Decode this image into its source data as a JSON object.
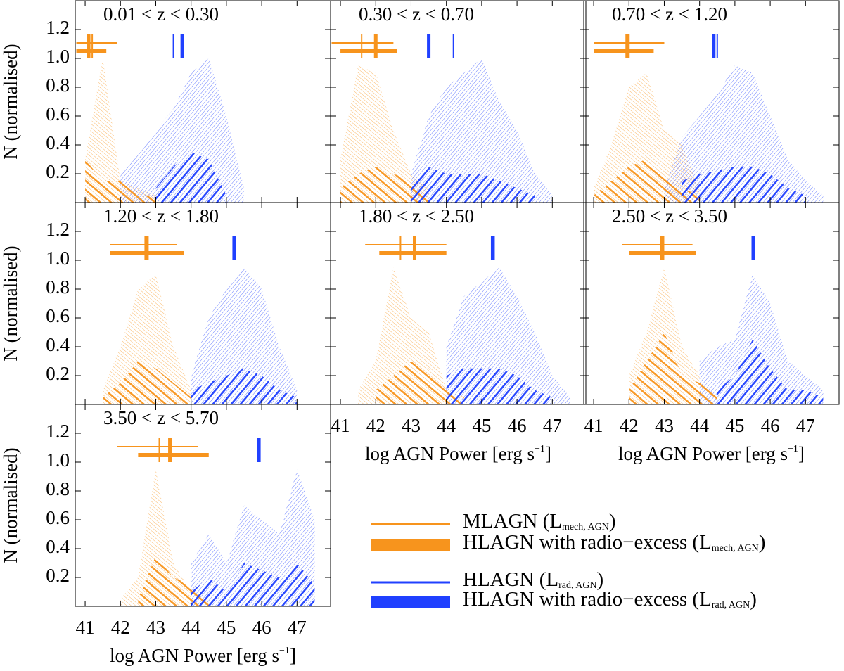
{
  "chart_data": [
    {
      "type": "area",
      "title": "0.01 < z < 0.30",
      "ylabel": "N (normalised)",
      "x": [
        41.0,
        41.5,
        42.0,
        42.5,
        43.0,
        43.5,
        44.0,
        44.5,
        45.0,
        45.5,
        46.0,
        46.5,
        47.0,
        47.5
      ],
      "xlim": [
        40.72,
        47.95
      ],
      "ylim": [
        0,
        1.4
      ],
      "xticks": [
        41,
        42,
        43,
        44,
        45,
        46,
        47
      ],
      "yticks": [
        0.2,
        0.4,
        0.6,
        0.8,
        {
          "value": 1.0,
          "label": "1.0"
        },
        1.2
      ],
      "series": [
        {
          "name": "MLAGN (L_{mech, AGN})",
          "color": "#f7941d",
          "style": "light",
          "values": [
            0.3,
            1.0,
            0.15,
            0.1,
            0.05,
            null,
            null,
            null,
            null,
            null,
            null,
            null,
            null,
            null
          ],
          "mean": 41.2,
          "range": [
            40.75,
            41.9
          ]
        },
        {
          "name": "HLAGN with radio−excess (L_{mech, AGN})",
          "color": "#f7941d",
          "style": "bold",
          "values": [
            0.3,
            0.15,
            0.15,
            0.05,
            0.05,
            null,
            null,
            null,
            null,
            null,
            null,
            null,
            null,
            null
          ],
          "mean": 41.1,
          "range": [
            40.75,
            41.6
          ]
        },
        {
          "name": "HLAGN (L_{rad, AGN})",
          "color": "#2040ff",
          "style": "light",
          "values": [
            null,
            null,
            0.2,
            0.35,
            0.5,
            0.65,
            0.9,
            1.0,
            0.6,
            0.1,
            null,
            null,
            null,
            null
          ],
          "mean": 43.5
        },
        {
          "name": "HLAGN with radio−excess (L_{rad, AGN})",
          "color": "#2040ff",
          "style": "bold",
          "values": [
            null,
            null,
            null,
            null,
            0.1,
            0.25,
            0.35,
            0.3,
            0.05,
            null,
            null,
            null,
            null,
            null
          ],
          "mean": 43.75
        }
      ]
    },
    {
      "type": "area",
      "title": "0.30 < z < 0.70",
      "x": [
        41.0,
        41.5,
        42.0,
        42.5,
        43.0,
        43.5,
        44.0,
        44.5,
        45.0,
        45.5,
        46.0,
        46.5,
        47.0,
        47.5
      ],
      "xlim": [
        40.72,
        47.95
      ],
      "ylim": [
        0,
        1.4
      ],
      "xticks": [
        41,
        42,
        43,
        44,
        45,
        46,
        47
      ],
      "yticks": [
        0.2,
        0.4,
        0.6,
        0.8,
        1.0,
        1.2
      ],
      "series": [
        {
          "name": "MLAGN (L_{mech, AGN})",
          "color": "#f7941d",
          "style": "light",
          "values": [
            0.3,
            0.95,
            0.9,
            0.5,
            0.2,
            0.1,
            null,
            null,
            null,
            null,
            null,
            null,
            null,
            null
          ],
          "mean": 41.6,
          "range": [
            40.75,
            42.5
          ]
        },
        {
          "name": "HLAGN with radio−excess (L_{mech, AGN})",
          "color": "#f7941d",
          "style": "bold",
          "values": [
            0.1,
            0.2,
            0.25,
            0.2,
            0.15,
            0.05,
            null,
            null,
            null,
            null,
            null,
            null,
            null,
            null
          ],
          "mean": 42.0,
          "range": [
            41.0,
            42.6
          ]
        },
        {
          "name": "HLAGN (L_{rad, AGN})",
          "color": "#2040ff",
          "style": "light",
          "values": [
            null,
            null,
            null,
            null,
            0.2,
            0.6,
            0.8,
            0.9,
            1.0,
            0.7,
            0.5,
            0.2,
            0.05,
            null
          ],
          "mean": 44.2
        },
        {
          "name": "HLAGN with radio−excess (L_{rad, AGN})",
          "color": "#2040ff",
          "style": "bold",
          "values": [
            null,
            null,
            null,
            null,
            0.1,
            0.25,
            0.2,
            0.2,
            0.2,
            0.15,
            0.1,
            0.05,
            null,
            null
          ],
          "mean": 43.5
        }
      ]
    },
    {
      "type": "area",
      "title": "0.70 < z < 1.20",
      "x": [
        41.0,
        41.5,
        42.0,
        42.5,
        43.0,
        43.5,
        44.0,
        44.5,
        45.0,
        45.5,
        46.0,
        46.5,
        47.0,
        47.5
      ],
      "xlim": [
        40.72,
        47.95
      ],
      "ylim": [
        0,
        1.4
      ],
      "xticks": [
        41,
        42,
        43,
        44,
        45,
        46,
        47
      ],
      "yticks": [
        0.2,
        0.4,
        0.6,
        0.8,
        1.0,
        1.2
      ],
      "series": [
        {
          "name": "MLAGN (L_{mech, AGN})",
          "color": "#f7941d",
          "style": "light",
          "values": [
            0.1,
            0.4,
            0.8,
            0.9,
            0.5,
            0.4,
            0.1,
            null,
            null,
            null,
            null,
            null,
            null,
            null
          ],
          "mean": 42.0,
          "range": [
            41.0,
            43.0
          ]
        },
        {
          "name": "HLAGN with radio−excess (L_{mech, AGN})",
          "color": "#f7941d",
          "style": "bold",
          "values": [
            0.05,
            0.15,
            0.25,
            0.3,
            0.2,
            0.1,
            0.05,
            null,
            null,
            null,
            null,
            null,
            null,
            null
          ],
          "mean": 41.95,
          "range": [
            41.0,
            42.7
          ]
        },
        {
          "name": "HLAGN (L_{rad, AGN})",
          "color": "#2040ff",
          "style": "light",
          "values": [
            null,
            null,
            null,
            null,
            0.1,
            0.45,
            0.6,
            0.75,
            0.95,
            0.9,
            0.6,
            0.3,
            0.15,
            0.05
          ],
          "mean": 44.5
        },
        {
          "name": "HLAGN with radio−excess (L_{rad, AGN})",
          "color": "#2040ff",
          "style": "bold",
          "values": [
            null,
            null,
            null,
            null,
            null,
            0.15,
            0.2,
            0.22,
            0.25,
            0.25,
            0.2,
            0.1,
            0.05,
            null
          ],
          "mean": 44.4
        }
      ]
    },
    {
      "type": "area",
      "title": "1.20 < z < 1.80",
      "ylabel": "N (normalised)",
      "x": [
        41.0,
        41.5,
        42.0,
        42.5,
        43.0,
        43.5,
        44.0,
        44.5,
        45.0,
        45.5,
        46.0,
        46.5,
        47.0,
        47.5
      ],
      "xlim": [
        40.72,
        47.95
      ],
      "ylim": [
        0,
        1.4
      ],
      "xticks": [
        41,
        42,
        43,
        44,
        45,
        46,
        47
      ],
      "yticks": [
        0.2,
        0.4,
        0.6,
        0.8,
        {
          "value": 1.0,
          "label": "1.0"
        },
        1.2
      ],
      "series": [
        {
          "name": "MLAGN (L_{mech, AGN})",
          "color": "#f7941d",
          "style": "light",
          "values": [
            null,
            0.1,
            0.4,
            0.8,
            0.9,
            0.4,
            0.1,
            null,
            null,
            null,
            null,
            null,
            null,
            null
          ],
          "mean": 42.7,
          "range": [
            41.7,
            43.6
          ]
        },
        {
          "name": "HLAGN with radio−excess (L_{mech, AGN})",
          "color": "#f7941d",
          "style": "bold",
          "values": [
            null,
            0.05,
            0.15,
            0.3,
            0.25,
            0.15,
            0.05,
            null,
            null,
            null,
            null,
            null,
            null,
            null
          ],
          "mean": 42.75,
          "range": [
            41.7,
            43.8
          ]
        },
        {
          "name": "HLAGN (L_{rad, AGN})",
          "color": "#2040ff",
          "style": "light",
          "values": [
            null,
            null,
            null,
            null,
            null,
            null,
            0.2,
            0.6,
            0.8,
            0.95,
            0.8,
            0.4,
            0.1,
            null
          ],
          "mean": 45.2
        },
        {
          "name": "HLAGN with radio−excess (L_{rad, AGN})",
          "color": "#2040ff",
          "style": "bold",
          "values": [
            null,
            null,
            null,
            null,
            null,
            null,
            0.1,
            0.15,
            0.2,
            0.25,
            0.2,
            0.1,
            0.05,
            null
          ],
          "mean": 45.22
        }
      ]
    },
    {
      "type": "area",
      "title": "1.80 < z < 2.50",
      "xlabel": "log AGN Power [erg s^{−1}]",
      "x": [
        41.0,
        41.5,
        42.0,
        42.5,
        43.0,
        43.5,
        44.0,
        44.5,
        45.0,
        45.5,
        46.0,
        46.5,
        47.0,
        47.5
      ],
      "xlim": [
        40.72,
        47.95
      ],
      "ylim": [
        0,
        1.4
      ],
      "xticks": [
        41,
        42,
        43,
        44,
        45,
        46,
        47
      ],
      "yticks": [
        0.2,
        0.4,
        0.6,
        0.8,
        1.0,
        1.2
      ],
      "series": [
        {
          "name": "MLAGN (L_{mech, AGN})",
          "color": "#f7941d",
          "style": "light",
          "values": [
            null,
            0.1,
            0.3,
            0.95,
            0.6,
            0.5,
            0.1,
            null,
            null,
            null,
            null,
            null,
            null,
            null
          ],
          "mean": 42.7,
          "range": [
            41.7,
            44.0
          ]
        },
        {
          "name": "HLAGN with radio−excess (L_{mech, AGN})",
          "color": "#f7941d",
          "style": "bold",
          "values": [
            null,
            null,
            0.1,
            0.2,
            0.3,
            0.25,
            0.1,
            0.05,
            null,
            null,
            null,
            null,
            null,
            null
          ],
          "mean": 43.1,
          "range": [
            42.1,
            44.0
          ]
        },
        {
          "name": "HLAGN (L_{rad, AGN})",
          "color": "#2040ff",
          "style": "light",
          "values": [
            null,
            null,
            null,
            null,
            null,
            null,
            0.4,
            0.75,
            0.85,
            0.95,
            0.75,
            0.5,
            0.2,
            0.05
          ],
          "mean": 45.28
        },
        {
          "name": "HLAGN with radio−excess (L_{rad, AGN})",
          "color": "#2040ff",
          "style": "bold",
          "values": [
            null,
            null,
            null,
            null,
            null,
            null,
            0.2,
            0.25,
            0.25,
            0.25,
            0.2,
            0.1,
            0.05,
            null
          ],
          "mean": 45.32
        }
      ]
    },
    {
      "type": "area",
      "title": "2.50 < z < 3.50",
      "xlabel": "log AGN Power [erg s^{−1}]",
      "x": [
        41.0,
        41.5,
        42.0,
        42.5,
        43.0,
        43.5,
        44.0,
        44.5,
        45.0,
        45.5,
        46.0,
        46.5,
        47.0,
        47.5
      ],
      "xlim": [
        40.72,
        47.95
      ],
      "ylim": [
        0,
        1.4
      ],
      "xticks": [
        41,
        42,
        43,
        44,
        45,
        46,
        47
      ],
      "yticks": [
        0.2,
        0.4,
        0.6,
        0.8,
        1.0,
        1.2
      ],
      "series": [
        {
          "name": "MLAGN (L_{mech, AGN})",
          "color": "#f7941d",
          "style": "light",
          "values": [
            null,
            null,
            0.2,
            0.5,
            0.95,
            0.4,
            0.2,
            null,
            null,
            null,
            null,
            null,
            null,
            null
          ],
          "mean": 42.9,
          "range": [
            41.8,
            43.8
          ]
        },
        {
          "name": "HLAGN with radio−excess (L_{mech, AGN})",
          "color": "#f7941d",
          "style": "bold",
          "values": [
            null,
            null,
            0.1,
            0.3,
            0.5,
            0.2,
            0.15,
            0.1,
            null,
            null,
            null,
            null,
            null,
            null
          ],
          "mean": 42.95,
          "range": [
            42.0,
            43.9
          ]
        },
        {
          "name": "HLAGN (L_{rad, AGN})",
          "color": "#2040ff",
          "style": "light",
          "values": [
            null,
            null,
            null,
            null,
            null,
            null,
            0.3,
            0.4,
            0.45,
            0.9,
            0.7,
            0.3,
            0.2,
            0.1
          ],
          "mean": 45.5
        },
        {
          "name": "HLAGN with radio−excess (L_{rad, AGN})",
          "color": "#2040ff",
          "style": "bold",
          "values": [
            null,
            null,
            null,
            null,
            null,
            null,
            null,
            0.1,
            0.2,
            0.45,
            0.25,
            0.1,
            0.1,
            0.05
          ],
          "mean": 45.52
        }
      ]
    },
    {
      "type": "area",
      "title": "3.50 < z < 5.70",
      "ylabel": "N (normalised)",
      "xlabel": "log AGN Power [erg s^{−1}]",
      "x": [
        41.0,
        41.5,
        42.0,
        42.5,
        43.0,
        43.5,
        44.0,
        44.5,
        45.0,
        45.5,
        46.0,
        46.5,
        47.0,
        47.5
      ],
      "xlim": [
        40.72,
        47.95
      ],
      "ylim": [
        0,
        1.4
      ],
      "xticks": [
        41,
        42,
        43,
        44,
        45,
        46,
        47
      ],
      "yticks": [
        0.2,
        0.4,
        0.6,
        0.8,
        {
          "value": 1.0,
          "label": "1.0"
        },
        1.2
      ],
      "series": [
        {
          "name": "MLAGN (L_{mech, AGN})",
          "color": "#f7941d",
          "style": "light",
          "values": [
            null,
            null,
            0.05,
            0.2,
            0.95,
            0.3,
            0.1,
            null,
            null,
            null,
            null,
            null,
            null,
            null
          ],
          "mean": 43.1,
          "range": [
            41.9,
            44.2
          ]
        },
        {
          "name": "HLAGN with radio−excess (L_{mech, AGN})",
          "color": "#f7941d",
          "style": "bold",
          "values": [
            null,
            null,
            null,
            0.05,
            0.35,
            0.2,
            0.15,
            0.05,
            null,
            null,
            null,
            null,
            null,
            null
          ],
          "mean": 43.4,
          "range": [
            42.5,
            44.5
          ]
        },
        {
          "name": "HLAGN (L_{rad, AGN})",
          "color": "#2040ff",
          "style": "light",
          "values": [
            null,
            null,
            null,
            null,
            null,
            null,
            0.3,
            0.5,
            0.3,
            0.7,
            0.6,
            0.5,
            0.95,
            0.6
          ],
          "mean": 45.88
        },
        {
          "name": "HLAGN with radio−excess (L_{rad, AGN})",
          "color": "#2040ff",
          "style": "bold",
          "values": [
            null,
            null,
            null,
            null,
            null,
            null,
            0.1,
            0.2,
            0.1,
            0.3,
            0.25,
            0.2,
            0.3,
            0.15
          ],
          "mean": 45.92
        }
      ]
    }
  ]
}
